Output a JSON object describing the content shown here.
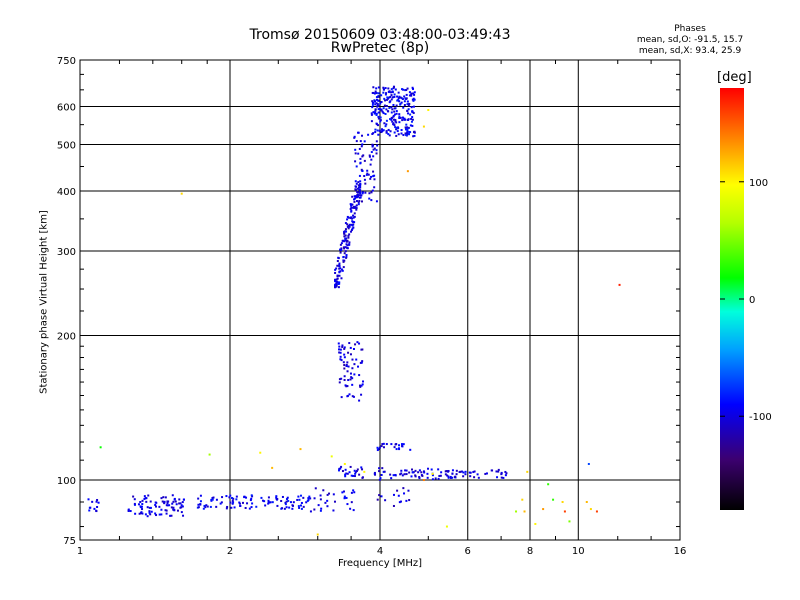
{
  "chart_data": {
    "type": "scatter",
    "title": "Tromsø 20150609 03:48:00-03:49:43",
    "subtitle": "RwPretec (8p)",
    "xlabel": "Frequency [MHz]",
    "ylabel": "Stationary phase Virtual Height [km]",
    "xscale": "log",
    "yscale": "log",
    "xlim": [
      1,
      16
    ],
    "ylim": [
      75,
      750
    ],
    "xticks": [
      1,
      2,
      4,
      6,
      8,
      10,
      16
    ],
    "yticks": [
      75,
      100,
      200,
      300,
      400,
      500,
      600,
      750
    ],
    "grid": true,
    "stats": {
      "header": "Phases",
      "line1": "mean, sd,O: -91.5, 15.7",
      "line2": "mean, sd,X:  93.4, 25.9"
    },
    "colorbar": {
      "label": "[deg]",
      "range": [
        -180,
        180
      ],
      "ticks": [
        100,
        0,
        -100
      ],
      "colormap": "rainbow"
    },
    "clusters": [
      {
        "x": [
          1.03,
          1.09
        ],
        "y": [
          85,
          92
        ],
        "n": 12,
        "phase": -95
      },
      {
        "x": [
          1.25,
          1.62
        ],
        "y": [
          84,
          93
        ],
        "n": 90,
        "phase": -100
      },
      {
        "x": [
          1.72,
          2.9
        ],
        "y": [
          87,
          93
        ],
        "n": 110,
        "phase": -95
      },
      {
        "x": [
          2.9,
          3.6
        ],
        "y": [
          86,
          97
        ],
        "n": 30,
        "phase": -100
      },
      {
        "x": [
          3.25,
          3.65
        ],
        "y": [
          252,
          420
        ],
        "n": 170,
        "phase": -100
      },
      {
        "x": [
          3.55,
          3.95
        ],
        "y": [
          380,
          530
        ],
        "n": 80,
        "phase": -100
      },
      {
        "x": [
          3.85,
          4.7
        ],
        "y": [
          520,
          660
        ],
        "n": 260,
        "phase": -95
      },
      {
        "x": [
          3.3,
          3.7
        ],
        "y": [
          145,
          195
        ],
        "n": 70,
        "phase": -105
      },
      {
        "x": [
          3.3,
          3.7
        ],
        "y": [
          101,
          107
        ],
        "n": 25,
        "phase": -100
      },
      {
        "x": [
          3.95,
          4.6
        ],
        "y": [
          115,
          119
        ],
        "n": 22,
        "phase": -100
      },
      {
        "x": [
          3.9,
          5.6
        ],
        "y": [
          100,
          106
        ],
        "n": 60,
        "phase": -100
      },
      {
        "x": [
          5.4,
          7.2
        ],
        "y": [
          101,
          105
        ],
        "n": 45,
        "phase": -100
      },
      {
        "x": [
          3.9,
          4.6
        ],
        "y": [
          88,
          97
        ],
        "n": 15,
        "phase": -105
      }
    ],
    "points": [
      {
        "x": 1.1,
        "y": 117,
        "phase": 20
      },
      {
        "x": 1.6,
        "y": 395,
        "phase": 110
      },
      {
        "x": 1.82,
        "y": 113,
        "phase": 60
      },
      {
        "x": 2.3,
        "y": 114,
        "phase": 100
      },
      {
        "x": 2.43,
        "y": 106,
        "phase": 120
      },
      {
        "x": 2.77,
        "y": 116,
        "phase": 120
      },
      {
        "x": 3.0,
        "y": 77,
        "phase": 110
      },
      {
        "x": 3.2,
        "y": 112,
        "phase": 90
      },
      {
        "x": 3.4,
        "y": 108,
        "phase": 100
      },
      {
        "x": 3.72,
        "y": 104,
        "phase": 100
      },
      {
        "x": 4.55,
        "y": 440,
        "phase": 130
      },
      {
        "x": 4.9,
        "y": 545,
        "phase": 110
      },
      {
        "x": 5.0,
        "y": 590,
        "phase": 100
      },
      {
        "x": 4.9,
        "y": 100,
        "phase": 140
      },
      {
        "x": 5.1,
        "y": 103,
        "phase": 100
      },
      {
        "x": 5.45,
        "y": 80,
        "phase": 90
      },
      {
        "x": 7.5,
        "y": 86,
        "phase": 60
      },
      {
        "x": 7.72,
        "y": 91,
        "phase": 110
      },
      {
        "x": 7.8,
        "y": 86,
        "phase": 120
      },
      {
        "x": 7.9,
        "y": 104,
        "phase": 110
      },
      {
        "x": 8.2,
        "y": 81,
        "phase": 100
      },
      {
        "x": 8.5,
        "y": 87,
        "phase": 130
      },
      {
        "x": 8.7,
        "y": 98,
        "phase": 30
      },
      {
        "x": 8.9,
        "y": 91,
        "phase": 30
      },
      {
        "x": 9.3,
        "y": 90,
        "phase": 110
      },
      {
        "x": 9.6,
        "y": 82,
        "phase": 50
      },
      {
        "x": 9.4,
        "y": 86,
        "phase": 160
      },
      {
        "x": 10.4,
        "y": 90,
        "phase": 120
      },
      {
        "x": 10.6,
        "y": 87,
        "phase": 110
      },
      {
        "x": 10.9,
        "y": 86,
        "phase": 160
      },
      {
        "x": 10.5,
        "y": 108,
        "phase": -70
      },
      {
        "x": 12.1,
        "y": 255,
        "phase": 170
      }
    ]
  }
}
